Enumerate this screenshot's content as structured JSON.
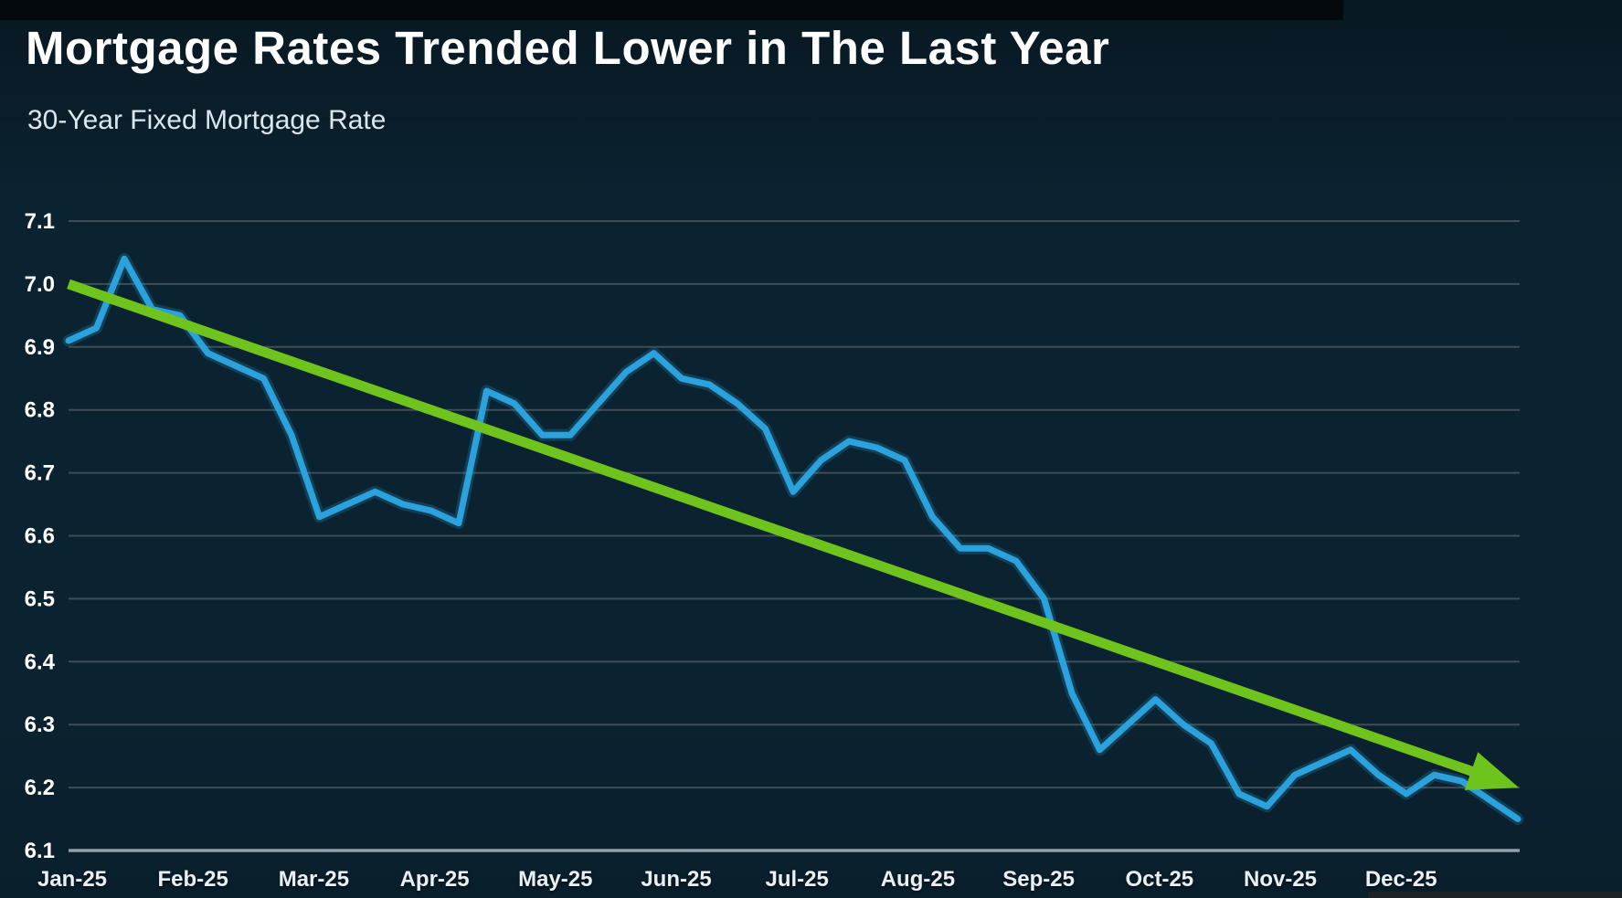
{
  "header": {
    "title": "Mortgage Rates Trended Lower in The Last Year",
    "subtitle": "30-Year Fixed Mortgage Rate"
  },
  "colors": {
    "background": "#0b2230",
    "background_top": "#081822",
    "background_bottom": "#0a1f2c",
    "top_bar": "#04090d",
    "bottom_bar": "#1e2226",
    "rate_line": "#2ba2dc",
    "trend_line": "#6fc31d",
    "gridline": "#3e4d57",
    "axis_line": "#92a0aa",
    "title_text": "#ffffff",
    "subtitle_text": "#dde6ec",
    "y_tick_text": "#ffffff",
    "x_tick_text": "#e9f0f5"
  },
  "chart_data": {
    "type": "line",
    "title": "Mortgage Rates Trended Lower in The Last Year",
    "subtitle": "30-Year Fixed Mortgage Rate",
    "ylim": [
      6.1,
      7.1
    ],
    "y_ticks": [
      "7.1",
      "7.0",
      "6.9",
      "6.8",
      "6.7",
      "6.6",
      "6.5",
      "6.4",
      "6.3",
      "6.2",
      "6.1"
    ],
    "x_tick_labels": [
      "Jan-25",
      "Feb-25",
      "Mar-25",
      "Apr-25",
      "May-25",
      "Jun-25",
      "Jul-25",
      "Aug-25",
      "Sep-25",
      "Oct-25",
      "Nov-25",
      "Dec-25"
    ],
    "grid": "horizontal-only",
    "legend": "none",
    "series": [
      {
        "name": "30-year fixed mortgage rate (weekly)",
        "type": "line",
        "color": "#2ba2dc",
        "x_unit": "week (Jan 2025 through Dec 2025)",
        "values": [
          6.91,
          6.93,
          7.04,
          6.96,
          6.95,
          6.89,
          6.87,
          6.85,
          6.76,
          6.63,
          6.65,
          6.67,
          6.65,
          6.64,
          6.62,
          6.83,
          6.81,
          6.76,
          6.76,
          6.81,
          6.86,
          6.89,
          6.85,
          6.84,
          6.81,
          6.77,
          6.67,
          6.72,
          6.75,
          6.74,
          6.72,
          6.63,
          6.58,
          6.58,
          6.56,
          6.5,
          6.35,
          6.26,
          6.3,
          6.34,
          6.3,
          6.27,
          6.19,
          6.17,
          6.22,
          6.24,
          6.26,
          6.22,
          6.19,
          6.22,
          6.21,
          6.18,
          6.15
        ]
      },
      {
        "name": "downward trend arrow",
        "type": "trend-arrow",
        "color": "#6fc31d",
        "start": {
          "x_label": "Jan-25",
          "value": 7.0
        },
        "end": {
          "x_label": "Dec-25",
          "value": 6.2
        }
      }
    ]
  }
}
